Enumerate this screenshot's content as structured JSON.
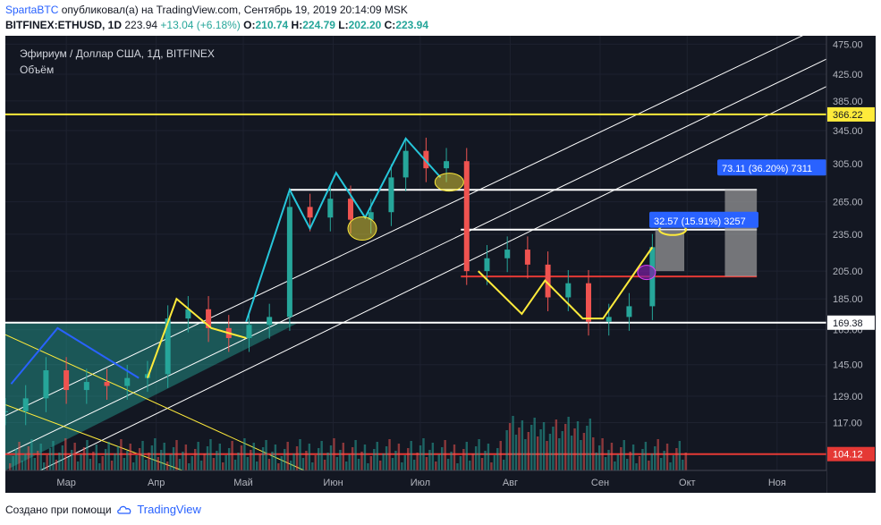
{
  "header": {
    "author": "SpartaBTC",
    "published_text": "опубликовал(а) на TradingView.com, Сентябрь 19, 2019 20:14:09 MSK",
    "symbol": "BITFINEX:ETHUSD, 1D",
    "last": "223.94",
    "change": "+13.04 (+6.18%)",
    "o_label": "O:",
    "o_value": "210.74",
    "h_label": "H:",
    "h_value": "224.79",
    "l_label": "L:",
    "l_value": "202.20",
    "c_label": "C:",
    "c_value": "223.94"
  },
  "legend": {
    "title": "Эфириум / Доллар США, 1Д, BITFINEX",
    "volume": "Объём"
  },
  "footer": {
    "text": "Создано при помощи",
    "brand": "TradingView",
    "logo_icon": "tradingview-cloud-icon"
  },
  "colors": {
    "background": "#131722",
    "up": "#26a69a",
    "down": "#ef5350",
    "yellow": "#ffeb3b",
    "cyan": "#26c6da",
    "blue": "#2962ff",
    "white": "#ffffff",
    "red_line": "#e53935",
    "grey_box": "#9e9e9e",
    "measure_label": "#2962ff"
  },
  "chart_data": {
    "type": "candlestick",
    "title": "Эфириум / Доллар США, 1Д, BITFINEX",
    "y_scale": "log",
    "ylim": [
      98,
      490
    ],
    "y_ticks": [
      "475.00",
      "425.00",
      "385.00",
      "345.00",
      "305.00",
      "265.00",
      "235.00",
      "205.00",
      "185.00",
      "165.00",
      "145.00",
      "129.00",
      "117.00"
    ],
    "x_ticks": [
      "Мар",
      "Апр",
      "Май",
      "Июн",
      "Июл",
      "Авг",
      "Сен",
      "Окт",
      "Ноя"
    ],
    "x_tick_dates": [
      "2019-03-01",
      "2019-04-01",
      "2019-05-01",
      "2019-06-01",
      "2019-07-01",
      "2019-08-01",
      "2019-09-01",
      "2019-10-01",
      "2019-11-01"
    ],
    "x_range": [
      "2019-02-08",
      "2019-11-18"
    ],
    "price_labels": [
      {
        "value": 366.22,
        "text": "366.22",
        "color": "#ffeb3b"
      },
      {
        "value": 169.38,
        "text": "169.38",
        "color": "#ffffff"
      },
      {
        "value": 104.12,
        "text": "104.12",
        "color": "#e53935"
      }
    ],
    "horizontal_levels": [
      {
        "value": 366.22,
        "from": "2019-02-08",
        "to": "2019-11-18",
        "color": "yellow"
      },
      {
        "value": 169.38,
        "from": "2019-02-08",
        "to": "2019-11-18",
        "color": "white"
      },
      {
        "value": 104.12,
        "from": "2019-02-08",
        "to": "2019-11-18",
        "color": "red_line"
      },
      {
        "value": 277,
        "from": "2019-05-17",
        "to": "2019-10-25",
        "color": "white"
      },
      {
        "value": 239,
        "from": "2019-07-15",
        "to": "2019-10-25",
        "color": "white"
      },
      {
        "value": 201,
        "from": "2019-07-15",
        "to": "2019-10-25",
        "color": "red_line"
      }
    ],
    "series": [
      {
        "name": "price",
        "dates": [
          "2019-02-08",
          "2019-02-15",
          "2019-02-22",
          "2019-03-01",
          "2019-03-08",
          "2019-03-15",
          "2019-03-22",
          "2019-03-29",
          "2019-04-05",
          "2019-04-12",
          "2019-04-19",
          "2019-04-26",
          "2019-05-03",
          "2019-05-10",
          "2019-05-17",
          "2019-05-24",
          "2019-05-31",
          "2019-06-07",
          "2019-06-14",
          "2019-06-21",
          "2019-06-26",
          "2019-07-03",
          "2019-07-10",
          "2019-07-17",
          "2019-07-24",
          "2019-07-31",
          "2019-08-07",
          "2019-08-14",
          "2019-08-21",
          "2019-08-28",
          "2019-09-04",
          "2019-09-11",
          "2019-09-19"
        ],
        "close": [
          122,
          128,
          142,
          132,
          136,
          134,
          138,
          140,
          172,
          178,
          166,
          160,
          168,
          173,
          260,
          250,
          268,
          248,
          255,
          290,
          320,
          300,
          308,
          205,
          215,
          222,
          210,
          186,
          196,
          170,
          173,
          180,
          224
        ]
      }
    ],
    "annotations": [
      {
        "type": "measure",
        "text": "73.11 (36.20%) 7311",
        "from": 201,
        "to": 277
      },
      {
        "type": "measure",
        "text": "32.57 (15.91%) 3257",
        "from": 205,
        "to": 239
      }
    ]
  }
}
